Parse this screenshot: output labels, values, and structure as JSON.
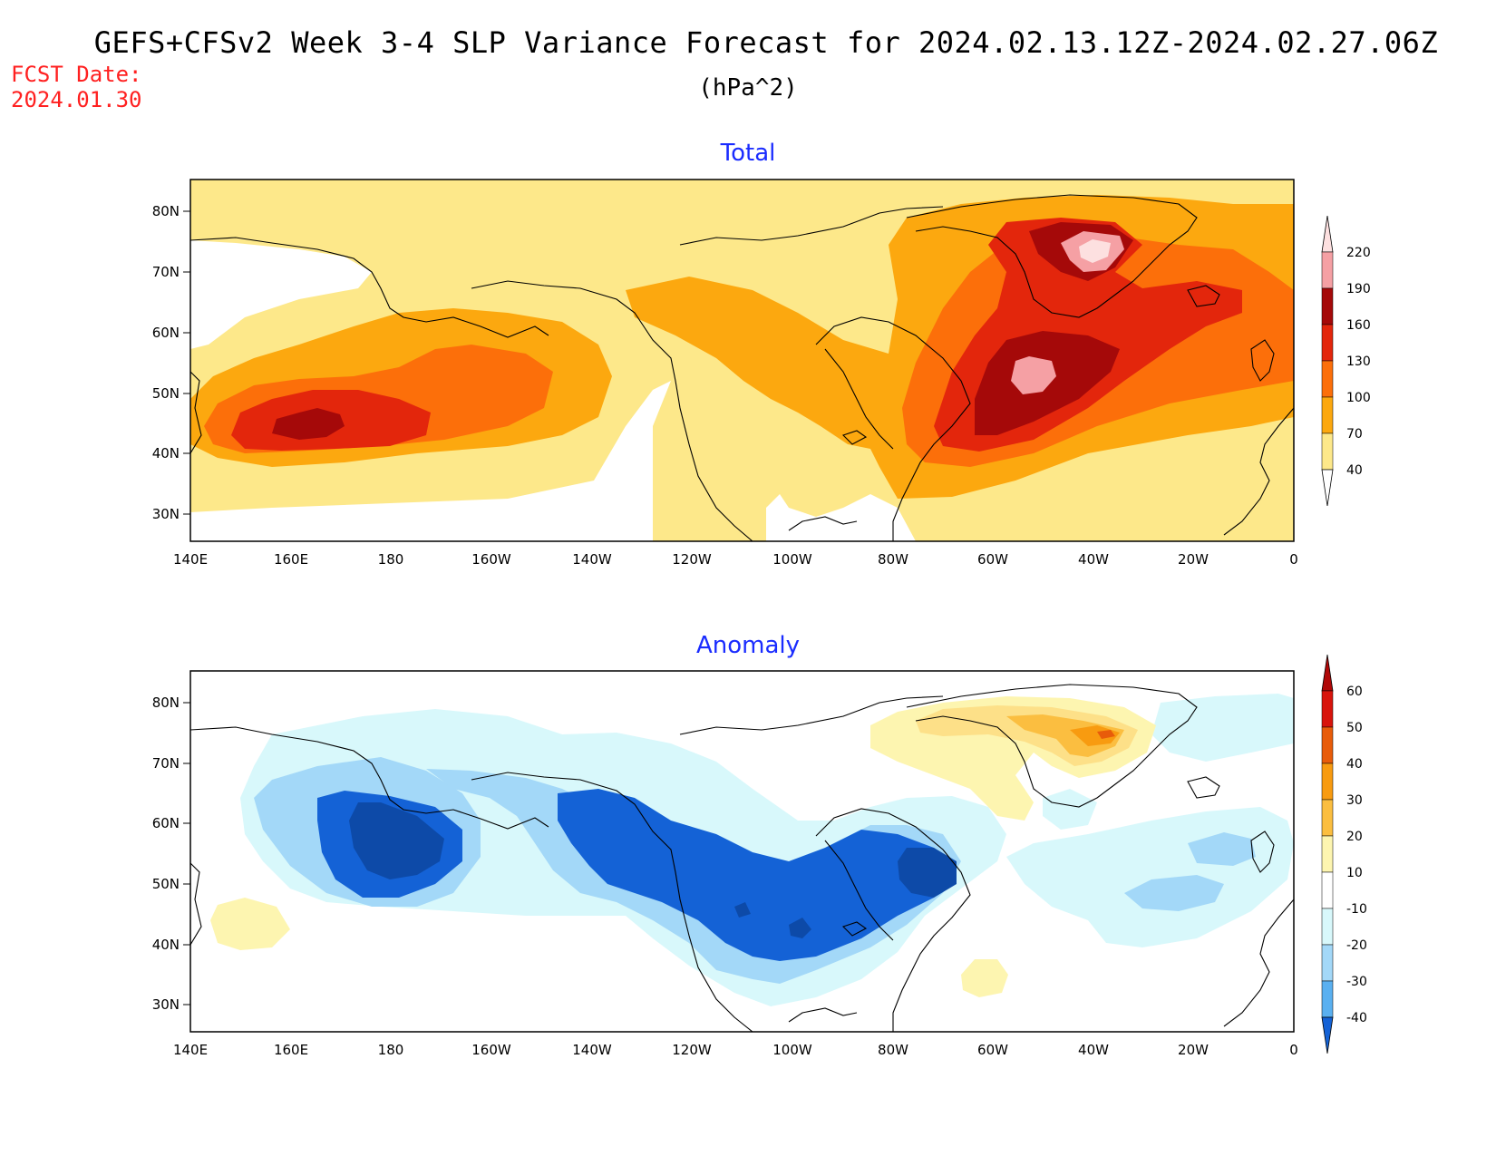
{
  "header": {
    "title": "GEFS+CFSv2 Week 3-4 SLP Variance Forecast for 2024.02.13.12Z-2024.02.27.06Z",
    "units": "(hPa^2)",
    "fcst_label": "FCST Date:",
    "fcst_date": "2024.01.30"
  },
  "axes": {
    "lon_labels": [
      "140E",
      "160E",
      "180",
      "160W",
      "140W",
      "120W",
      "100W",
      "80W",
      "60W",
      "40W",
      "20W",
      "0"
    ],
    "lat_labels": [
      "80N",
      "70N",
      "60N",
      "50N",
      "40N",
      "30N"
    ]
  },
  "colors": {
    "total": [
      "#fde88a",
      "#fca80f",
      "#fc6f0a",
      "#e3260c",
      "#a50909",
      "#f5a0a4",
      "#fde0e0"
    ],
    "anomaly_neg": [
      "#1462d6",
      "#5ab0f0",
      "#a3d8f8",
      "#d8f8fb"
    ],
    "anomaly_pos": [
      "#fdf5b0",
      "#fde088",
      "#fbbe40",
      "#f89b10",
      "#e85c0a",
      "#d8140c"
    ],
    "title_blue": "#1a2cff",
    "fcst_red": "#ff2020"
  },
  "panels": [
    {
      "title": "Total",
      "colorbar_labels": [
        "220",
        "190",
        "160",
        "130",
        "100",
        "70",
        "40"
      ]
    },
    {
      "title": "Anomaly",
      "colorbar_labels": [
        "60",
        "50",
        "40",
        "30",
        "20",
        "10",
        "-10",
        "-20",
        "-30",
        "-40"
      ]
    }
  ]
}
